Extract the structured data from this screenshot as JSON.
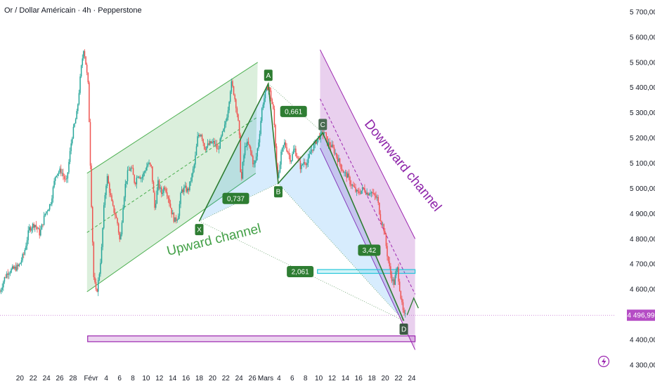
{
  "header": {
    "title": "Or / Dollar Américain · 4h · Pepperstone"
  },
  "colors": {
    "up": "#26a69a",
    "down": "#ef5350",
    "upward_channel": "#4caf50",
    "downward_channel": "#9c27b0",
    "harmonic_line": "#2e7d32",
    "price_badge": "#b54dc5"
  },
  "chart_data": {
    "type": "candlestick",
    "instrument": "Or / Dollar Américain",
    "timeframe": "4h",
    "broker": "Pepperstone",
    "y_axis": {
      "ticks": [
        5700,
        5600,
        5500,
        5400,
        5300,
        5200,
        5100,
        5000,
        4900,
        4800,
        4700,
        4600,
        4500,
        4400,
        4300
      ],
      "labels": [
        "5 700,00",
        "5 600,00",
        "5 500,00",
        "5 400,00",
        "5 300,00",
        "5 200,00",
        "5 100,00",
        "5 000,00",
        "4 900,00",
        "4 800,00",
        "4 700,00",
        "4 600,00",
        "4 500,00",
        "4 400,00",
        "4 300,00"
      ],
      "range": [
        4270,
        5730
      ]
    },
    "x_axis": {
      "range": [
        17.0,
        55.5
      ],
      "ticks": [
        {
          "t": 20,
          "label": "20"
        },
        {
          "t": 22,
          "label": "22"
        },
        {
          "t": 24,
          "label": "24"
        },
        {
          "t": 26,
          "label": "26"
        },
        {
          "t": 28,
          "label": "28"
        },
        {
          "t": 30.7,
          "label": "Févr"
        },
        {
          "t": 33,
          "label": "4"
        },
        {
          "t": 35,
          "label": "6"
        },
        {
          "t": 37,
          "label": "8"
        },
        {
          "t": 39,
          "label": "10"
        },
        {
          "t": 41,
          "label": "12"
        },
        {
          "t": 43,
          "label": "14"
        },
        {
          "t": 45,
          "label": "16"
        },
        {
          "t": 47,
          "label": "18"
        },
        {
          "t": 49,
          "label": "20"
        },
        {
          "t": 51,
          "label": "22"
        },
        {
          "t": 53,
          "label": "24"
        },
        {
          "t": 55,
          "label": "26"
        },
        {
          "t": 57,
          "label": "Mars"
        },
        {
          "t": 59,
          "label": "4"
        },
        {
          "t": 61,
          "label": "6"
        },
        {
          "t": 63,
          "label": "8"
        },
        {
          "t": 65,
          "label": "10"
        },
        {
          "t": 67,
          "label": "12"
        },
        {
          "t": 69,
          "label": "14"
        },
        {
          "t": 71,
          "label": "16"
        },
        {
          "t": 73,
          "label": "18"
        },
        {
          "t": 75,
          "label": "20"
        },
        {
          "t": 77,
          "label": "22"
        },
        {
          "t": 79,
          "label": "24"
        }
      ]
    },
    "current_price": {
      "value": 4496.99,
      "label": "4 496,99"
    },
    "price_path": [
      [
        17.0,
        4590
      ],
      [
        17.6,
        4640
      ],
      [
        18.2,
        4670
      ],
      [
        19.0,
        4680
      ],
      [
        19.8,
        4690
      ],
      [
        20.6,
        4740
      ],
      [
        21.4,
        4840
      ],
      [
        22.2,
        4860
      ],
      [
        23.0,
        4820
      ],
      [
        23.8,
        4900
      ],
      [
        24.6,
        4940
      ],
      [
        25.4,
        5060
      ],
      [
        26.2,
        5070
      ],
      [
        27.0,
        5020
      ],
      [
        27.8,
        5200
      ],
      [
        28.6,
        5300
      ],
      [
        29.2,
        5470
      ],
      [
        29.6,
        5560
      ],
      [
        29.9,
        5500
      ],
      [
        30.3,
        5400
      ],
      [
        30.7,
        5000
      ],
      [
        31.1,
        4650
      ],
      [
        31.5,
        4580
      ],
      [
        31.9,
        4650
      ],
      [
        32.3,
        4760
      ],
      [
        32.7,
        4950
      ],
      [
        33.1,
        5050
      ],
      [
        33.5,
        4990
      ],
      [
        33.9,
        4930
      ],
      [
        34.3,
        4900
      ],
      [
        34.7,
        4860
      ],
      [
        35.1,
        4780
      ],
      [
        35.5,
        4930
      ],
      [
        35.9,
        5020
      ],
      [
        36.3,
        5070
      ],
      [
        36.8,
        5080
      ],
      [
        37.3,
        5020
      ],
      [
        37.8,
        5060
      ],
      [
        38.3,
        5040
      ],
      [
        38.8,
        5070
      ],
      [
        39.3,
        5100
      ],
      [
        39.8,
        5080
      ],
      [
        40.3,
        4920
      ],
      [
        40.8,
        5020
      ],
      [
        41.3,
        4980
      ],
      [
        41.8,
        5010
      ],
      [
        42.3,
        4970
      ],
      [
        42.8,
        4910
      ],
      [
        43.3,
        4870
      ],
      [
        43.8,
        4890
      ],
      [
        44.3,
        4990
      ],
      [
        44.8,
        5000
      ],
      [
        45.3,
        4990
      ],
      [
        45.8,
        5040
      ],
      [
        46.3,
        5100
      ],
      [
        46.8,
        5210
      ],
      [
        47.3,
        5220
      ],
      [
        47.8,
        5160
      ],
      [
        48.3,
        5170
      ],
      [
        48.8,
        5180
      ],
      [
        49.3,
        5180
      ],
      [
        49.8,
        5150
      ],
      [
        50.3,
        5200
      ],
      [
        50.8,
        5240
      ],
      [
        51.3,
        5310
      ],
      [
        51.8,
        5420
      ],
      [
        52.2,
        5380
      ],
      [
        52.6,
        5320
      ],
      [
        53.0,
        5230
      ],
      [
        53.3,
        5010
      ],
      [
        53.6,
        5110
      ],
      [
        54.0,
        5180
      ],
      [
        54.4,
        5170
      ],
      [
        54.8,
        5140
      ],
      [
        55.2,
        5090
      ],
      [
        55.5,
        5110
      ]
    ],
    "candle_seed": 7,
    "upward_channel": {
      "label": "Upward channel",
      "lower": [
        [
          30.1,
          4590
        ],
        [
          55.5,
          5060
        ]
      ],
      "upper": [
        [
          30.1,
          5060
        ],
        [
          55.8,
          5500
        ]
      ],
      "mid": [
        [
          30.1,
          4825
        ],
        [
          55.6,
          5280
        ]
      ]
    },
    "downward_channel": {
      "label": "Downward channel",
      "upper": [
        [
          65.2,
          5550
        ],
        [
          79.5,
          4800
        ]
      ],
      "lower": [
        [
          65.2,
          5160
        ],
        [
          79.5,
          4360
        ]
      ],
      "mid": [
        [
          65.2,
          5355
        ],
        [
          79.5,
          4580
        ]
      ]
    },
    "harmonic_pattern": {
      "points": [
        {
          "name": "X",
          "t": 47.0,
          "price": 4870
        },
        {
          "name": "A",
          "t": 57.4,
          "price": 5415
        },
        {
          "name": "B",
          "t": 58.9,
          "price": 5020
        },
        {
          "name": "C",
          "t": 65.6,
          "price": 5220
        },
        {
          "name": "D",
          "t": 77.8,
          "price": 4475
        }
      ],
      "ratios": [
        {
          "label": "0,737",
          "t": 52.5,
          "price": 4960
        },
        {
          "label": "0,661",
          "t": 61.2,
          "price": 5305
        },
        {
          "label": "3,42",
          "t": 72.6,
          "price": 4755
        },
        {
          "label": "2,061",
          "t": 62.2,
          "price": 4670
        }
      ]
    },
    "zones": [
      {
        "name": "support-zone",
        "t0": 30.2,
        "t1": 79.5,
        "low": 4392,
        "high": 4415,
        "color": "#9c27b0"
      },
      {
        "name": "resistance-zone",
        "t0": 64.8,
        "t1": 79.5,
        "low": 4663,
        "high": 4678,
        "color": "#26c6da"
      }
    ],
    "projection": [
      [
        78.3,
        4498
      ],
      [
        79.3,
        4565
      ],
      [
        80.0,
        4525
      ]
    ]
  }
}
